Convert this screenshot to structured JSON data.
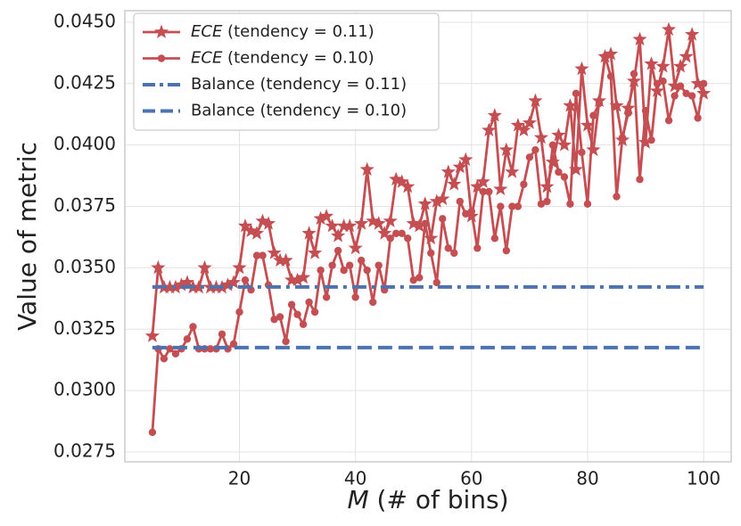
{
  "chart_data": {
    "type": "line",
    "xlabel": "M (# of bins)",
    "xlabel_italic_first_word": true,
    "ylabel": "Value of metric",
    "x": [
      5,
      6,
      7,
      8,
      9,
      10,
      11,
      12,
      13,
      14,
      15,
      16,
      17,
      18,
      19,
      20,
      21,
      22,
      23,
      24,
      25,
      26,
      27,
      28,
      29,
      30,
      31,
      32,
      33,
      34,
      35,
      36,
      37,
      38,
      39,
      40,
      41,
      42,
      43,
      44,
      45,
      46,
      47,
      48,
      49,
      50,
      51,
      52,
      53,
      54,
      55,
      56,
      57,
      58,
      59,
      60,
      61,
      62,
      63,
      64,
      65,
      66,
      67,
      68,
      69,
      70,
      71,
      72,
      73,
      74,
      75,
      76,
      77,
      78,
      79,
      80,
      81,
      82,
      83,
      84,
      85,
      86,
      87,
      88,
      89,
      90,
      91,
      92,
      93,
      94,
      95,
      96,
      97,
      98,
      99,
      100
    ],
    "xlim": [
      0.25,
      104.75
    ],
    "xticks": [
      20,
      40,
      60,
      80,
      100
    ],
    "ylim": [
      0.0271,
      0.04547
    ],
    "yticks": [
      0.0275,
      {
        "value": 0.03,
        "label": "0.0300"
      },
      0.0325,
      {
        "value": 0.035,
        "label": "0.0350"
      },
      0.0375,
      {
        "value": 0.04,
        "label": "0.0400"
      },
      0.0425,
      {
        "value": 0.045,
        "label": "0.0450"
      }
    ],
    "grid": true,
    "legend": "upper left",
    "series": [
      {
        "name": "ECE (tendency = 0.11)",
        "name_italic_first_word": true,
        "color": "#c44e52",
        "marker": "star",
        "linestyle": "solid",
        "values": [
          0.03222,
          0.035,
          0.0342,
          0.0342,
          0.0342,
          0.0343,
          0.0344,
          0.0342,
          0.0342,
          0.035,
          0.0342,
          0.0342,
          0.0342,
          0.0343,
          0.0344,
          0.035,
          0.0367,
          0.0365,
          0.0364,
          0.0369,
          0.0368,
          0.0356,
          0.0353,
          0.0353,
          0.0345,
          0.0345,
          0.0346,
          0.0364,
          0.0356,
          0.037,
          0.0371,
          0.0367,
          0.0363,
          0.0367,
          0.0367,
          0.0358,
          0.0368,
          0.039,
          0.0369,
          0.0368,
          0.0364,
          0.0369,
          0.0386,
          0.0385,
          0.0383,
          0.0368,
          0.0367,
          0.0376,
          0.0362,
          0.0377,
          0.0378,
          0.0389,
          0.0384,
          0.0391,
          0.0394,
          0.0371,
          0.0383,
          0.0385,
          0.0406,
          0.0412,
          0.0382,
          0.0398,
          0.0389,
          0.0408,
          0.0406,
          0.0409,
          0.0418,
          0.0403,
          0.0383,
          0.0393,
          0.0404,
          0.04,
          0.0416,
          0.039,
          0.0431,
          0.0408,
          0.0398,
          0.0418,
          0.0436,
          0.0437,
          0.0416,
          0.0402,
          0.0415,
          0.0426,
          0.0443,
          0.0401,
          0.0433,
          0.0422,
          0.0432,
          0.0447,
          0.0424,
          0.0432,
          0.0436,
          0.0445,
          0.0425,
          0.0421
        ]
      },
      {
        "name": "ECE (tendency = 0.10)",
        "name_italic_first_word": true,
        "color": "#c44e52",
        "marker": "circle",
        "linestyle": "solid",
        "values": [
          0.0283,
          0.0317,
          0.0313,
          0.0317,
          0.0315,
          0.0317,
          0.0321,
          0.0326,
          0.0317,
          0.0317,
          0.0317,
          0.0317,
          0.0323,
          0.0317,
          0.0319,
          0.0332,
          0.0345,
          0.0341,
          0.0355,
          0.0355,
          0.0343,
          0.0329,
          0.033,
          0.032,
          0.0335,
          0.0331,
          0.0327,
          0.0336,
          0.0332,
          0.0349,
          0.0338,
          0.0351,
          0.0357,
          0.0349,
          0.0351,
          0.0338,
          0.0353,
          0.0349,
          0.0336,
          0.0351,
          0.0341,
          0.0362,
          0.0364,
          0.0364,
          0.0362,
          0.0345,
          0.0346,
          0.0368,
          0.0356,
          0.0344,
          0.037,
          0.0358,
          0.0356,
          0.0377,
          0.0372,
          0.0373,
          0.0358,
          0.0381,
          0.0381,
          0.0362,
          0.0375,
          0.0357,
          0.0375,
          0.0375,
          0.0384,
          0.0395,
          0.0398,
          0.0376,
          0.0377,
          0.04,
          0.0389,
          0.0387,
          0.0376,
          0.0421,
          0.0397,
          0.0376,
          0.0412,
          0.0417,
          0.0436,
          0.0428,
          0.0379,
          0.0403,
          0.0413,
          0.0429,
          0.0386,
          0.0414,
          0.0402,
          0.0425,
          0.0426,
          0.041,
          0.042,
          0.0424,
          0.0421,
          0.042,
          0.0411,
          0.0425
        ]
      },
      {
        "name": "Balance (tendency = 0.11)",
        "color": "#4c72b0",
        "marker": "none",
        "linestyle": "dashdot",
        "x": [
          5,
          100
        ],
        "values": [
          0.03422,
          0.03422
        ]
      },
      {
        "name": "Balance (tendency = 0.10)",
        "color": "#4c72b0",
        "marker": "none",
        "linestyle": "dashed",
        "x": [
          5,
          100
        ],
        "values": [
          0.03175,
          0.03175
        ]
      }
    ]
  }
}
